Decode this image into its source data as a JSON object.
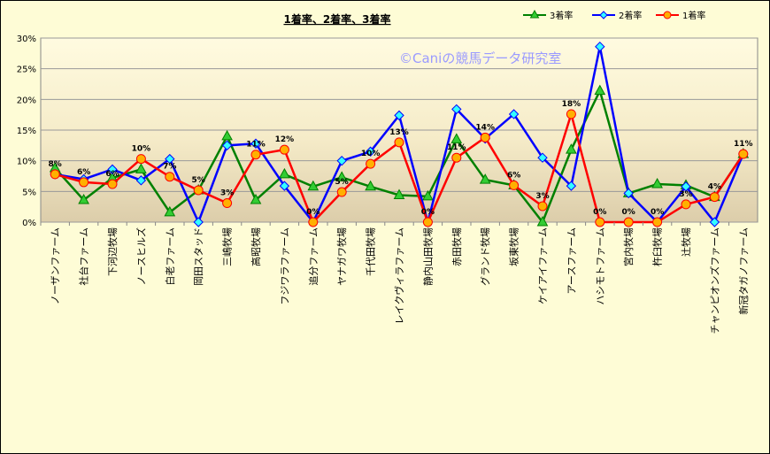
{
  "chart_data": {
    "type": "line",
    "title": "1着率、2着率、3着率",
    "watermark": "©Caniの競馬データ研究室",
    "xlabel": "",
    "ylabel": "",
    "ylim": [
      0,
      0.3
    ],
    "yticks": [
      "0%",
      "5%",
      "10%",
      "15%",
      "20%",
      "25%",
      "30%"
    ],
    "grid": "horizontal",
    "legend_position": "top-right",
    "categories": [
      "ノーザンファーム",
      "社台ファーム",
      "下河辺牧場",
      "ノースヒルズ",
      "白老ファーム",
      "岡田スタッド",
      "三嶋牧場",
      "高昭牧場",
      "フジワラファーム",
      "追分ファーム",
      "ヤナガワ牧場",
      "千代田牧場",
      "レイクヴィラファーム",
      "静内山田牧場",
      "赤田牧場",
      "グランド牧場",
      "坂東牧場",
      "ケイアイファーム",
      "アースファーム",
      "ハシモトファーム",
      "宮内牧場",
      "杵臼牧場",
      "辻牧場",
      "チャンピオンズファーム",
      "新冠タガノファーム"
    ],
    "series": [
      {
        "name": "3着率",
        "color": "#008000",
        "marker": "triangle",
        "marker_fill": "#33cc33",
        "values": [
          0.088,
          0.036,
          0.072,
          0.086,
          0.016,
          0.052,
          0.14,
          0.036,
          0.078,
          0.058,
          0.073,
          0.058,
          0.044,
          0.042,
          0.135,
          0.069,
          0.06,
          0.0,
          0.118,
          0.214,
          0.047,
          0.062,
          0.06,
          0.041,
          0.111
        ]
      },
      {
        "name": "2着率",
        "color": "#0000ff",
        "marker": "diamond",
        "marker_fill": "#33ffff",
        "values": [
          0.078,
          0.07,
          0.086,
          0.068,
          0.103,
          0.0,
          0.125,
          0.128,
          0.059,
          0.0,
          0.1,
          0.115,
          0.174,
          0.0,
          0.184,
          0.136,
          0.176,
          0.105,
          0.059,
          0.286,
          0.047,
          0.0,
          0.058,
          0.0,
          0.111
        ]
      },
      {
        "name": "1着率",
        "color": "#ff0000",
        "marker": "circle",
        "marker_fill": "#ffb000",
        "values": [
          0.078,
          0.065,
          0.062,
          0.103,
          0.074,
          0.052,
          0.031,
          0.11,
          0.118,
          0.0,
          0.049,
          0.095,
          0.13,
          0.0,
          0.105,
          0.138,
          0.06,
          0.026,
          0.176,
          0.0,
          0.0,
          0.0,
          0.029,
          0.041,
          0.111
        ]
      }
    ],
    "data_labels": [
      "8%",
      "6%",
      "6%",
      "10%",
      "7%",
      "5%",
      "3%",
      "11%",
      "12%",
      "0%",
      "5%",
      "10%",
      "13%",
      "0%",
      "11%",
      "14%",
      "6%",
      "3%",
      "18%",
      "0%",
      "0%",
      "0%",
      "3%",
      "4%",
      "11%"
    ]
  }
}
